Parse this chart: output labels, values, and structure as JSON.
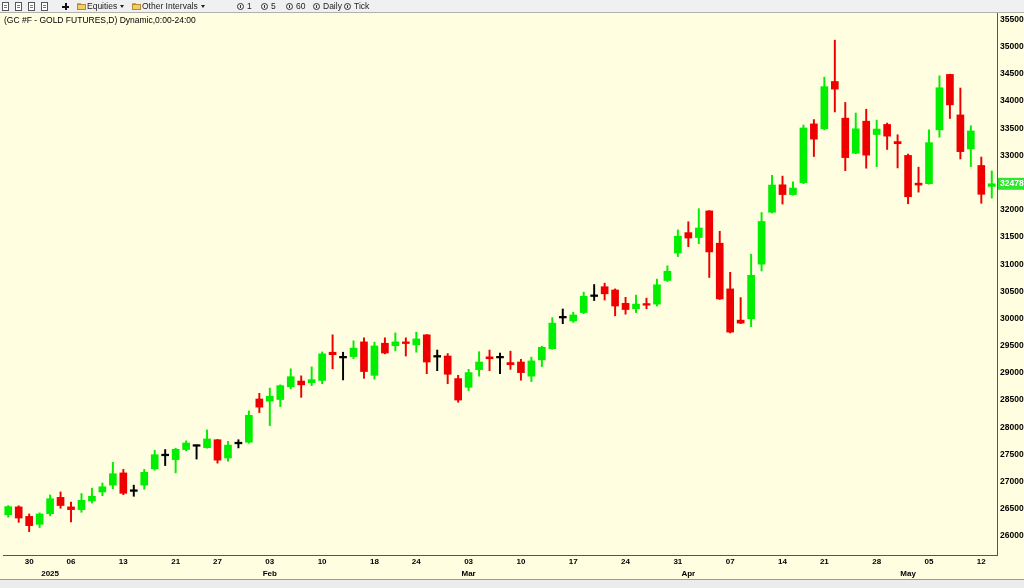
{
  "chart_data": {
    "type": "candlestick",
    "title": "(GC #F - GOLD FUTURES,D) Dynamic,0:00-24:00",
    "categories": [
      null,
      null,
      "30",
      null,
      "\n2025",
      null,
      "06",
      null,
      null,
      null,
      null,
      "13",
      null,
      null,
      null,
      null,
      "21",
      null,
      null,
      null,
      "27",
      null,
      null,
      null,
      null,
      "03\nFeb",
      null,
      null,
      null,
      null,
      "10",
      null,
      null,
      null,
      null,
      "18",
      null,
      null,
      null,
      "24",
      null,
      null,
      null,
      null,
      "03\nMar",
      null,
      null,
      null,
      null,
      "10",
      null,
      null,
      null,
      null,
      "17",
      null,
      null,
      null,
      null,
      "24",
      null,
      null,
      null,
      null,
      "31",
      "\nApr",
      null,
      null,
      null,
      "07",
      null,
      null,
      null,
      null,
      "14",
      null,
      null,
      null,
      "21",
      null,
      null,
      null,
      null,
      "28",
      null,
      null,
      "\nMay",
      null,
      "05",
      null,
      null,
      null,
      null,
      "12",
      null
    ],
    "ohlc": [
      [
        26390,
        26560,
        26345,
        26540
      ],
      [
        26535,
        26555,
        26250,
        26330
      ],
      [
        26360,
        26405,
        26080,
        26190
      ],
      [
        26215,
        26425,
        26155,
        26405
      ],
      [
        26410,
        26755,
        26370,
        26685
      ],
      [
        26710,
        26810,
        26510,
        26560
      ],
      [
        26535,
        26625,
        26260,
        26485
      ],
      [
        26485,
        26780,
        26435,
        26655
      ],
      [
        26645,
        26880,
        26605,
        26730
      ],
      [
        26810,
        26975,
        26740,
        26905
      ],
      [
        26935,
        27355,
        26870,
        27145
      ],
      [
        27160,
        27225,
        26760,
        26785
      ],
      [
        26835,
        26935,
        26730,
        26835
      ],
      [
        26935,
        27225,
        26860,
        27170
      ],
      [
        27235,
        27575,
        27210,
        27495
      ],
      [
        27490,
        27590,
        27295,
        27490
      ],
      [
        27405,
        27615,
        27160,
        27595
      ],
      [
        27590,
        27750,
        27565,
        27710
      ],
      [
        27665,
        27675,
        27415,
        27665
      ],
      [
        27625,
        27950,
        27615,
        27785
      ],
      [
        27770,
        27775,
        27340,
        27395
      ],
      [
        27435,
        27740,
        27375,
        27670
      ],
      [
        27710,
        27770,
        27620,
        27710
      ],
      [
        27725,
        28300,
        27705,
        28220
      ],
      [
        28520,
        28625,
        28270,
        28370
      ],
      [
        28480,
        28720,
        28030,
        28570
      ],
      [
        28510,
        28780,
        28380,
        28765
      ],
      [
        28745,
        29075,
        28710,
        28930
      ],
      [
        28850,
        28945,
        28550,
        28780
      ],
      [
        28820,
        29110,
        28765,
        28875
      ],
      [
        28860,
        29385,
        28800,
        29350
      ],
      [
        29380,
        29700,
        29075,
        29335
      ],
      [
        29290,
        29380,
        28870,
        29290
      ],
      [
        29300,
        29590,
        29260,
        29455
      ],
      [
        29570,
        29645,
        28900,
        29025
      ],
      [
        28955,
        29565,
        28885,
        29495
      ],
      [
        29545,
        29645,
        29350,
        29365
      ],
      [
        29500,
        29735,
        29405,
        29570
      ],
      [
        29570,
        29645,
        29310,
        29540
      ],
      [
        29515,
        29750,
        29380,
        29625
      ],
      [
        29700,
        29705,
        28985,
        29200
      ],
      [
        29305,
        29420,
        29040,
        29305
      ],
      [
        29310,
        29355,
        28800,
        28975
      ],
      [
        28895,
        28955,
        28460,
        28500
      ],
      [
        28735,
        29065,
        28675,
        29005
      ],
      [
        29060,
        29390,
        28940,
        29200
      ],
      [
        29295,
        29420,
        29040,
        29260
      ],
      [
        29290,
        29365,
        28985,
        29290
      ],
      [
        29190,
        29400,
        29065,
        29150
      ],
      [
        29200,
        29250,
        28865,
        29005
      ],
      [
        28940,
        29290,
        28840,
        29220
      ],
      [
        29240,
        29490,
        29115,
        29470
      ],
      [
        29445,
        30015,
        29435,
        29915
      ],
      [
        30025,
        30175,
        29905,
        30025
      ],
      [
        29955,
        30115,
        29930,
        30065
      ],
      [
        30110,
        30485,
        30090,
        30410
      ],
      [
        30420,
        30625,
        30330,
        30420
      ],
      [
        30585,
        30650,
        30340,
        30455
      ],
      [
        30525,
        30545,
        30050,
        30230
      ],
      [
        30280,
        30390,
        30080,
        30165
      ],
      [
        30180,
        30430,
        30110,
        30265
      ],
      [
        30275,
        30375,
        30180,
        30245
      ],
      [
        30265,
        30725,
        30230,
        30620
      ],
      [
        30700,
        30970,
        30680,
        30870
      ],
      [
        31205,
        31630,
        31140,
        31515
      ],
      [
        31580,
        31780,
        31320,
        31480
      ],
      [
        31490,
        32020,
        31375,
        31665
      ],
      [
        31980,
        31985,
        30755,
        31225
      ],
      [
        31385,
        31605,
        30350,
        30360
      ],
      [
        30545,
        30850,
        29735,
        29750
      ],
      [
        29970,
        30385,
        29905,
        29915
      ],
      [
        29995,
        31185,
        29850,
        30795
      ],
      [
        31000,
        31950,
        30875,
        31785
      ],
      [
        31955,
        32635,
        31940,
        32455
      ],
      [
        32460,
        32620,
        32105,
        32280
      ],
      [
        32280,
        32515,
        32270,
        32400
      ],
      [
        32500,
        33560,
        32480,
        33505
      ],
      [
        33580,
        33660,
        32980,
        33300
      ],
      [
        33490,
        34440,
        33470,
        34265
      ],
      [
        34360,
        35120,
        33800,
        34220
      ],
      [
        33685,
        33975,
        32720,
        32960
      ],
      [
        33040,
        33780,
        33030,
        33490
      ],
      [
        33630,
        33850,
        32765,
        33005
      ],
      [
        33385,
        33650,
        32795,
        33485
      ],
      [
        33570,
        33595,
        33110,
        33355
      ],
      [
        33255,
        33380,
        32770,
        33215
      ],
      [
        33000,
        33025,
        32110,
        32240
      ],
      [
        32490,
        32785,
        32325,
        32455
      ],
      [
        32480,
        33470,
        32470,
        33235
      ],
      [
        33470,
        34465,
        33335,
        34245
      ],
      [
        34490,
        34495,
        33680,
        33930
      ],
      [
        33745,
        34240,
        32935,
        33070
      ],
      [
        33120,
        33545,
        32795,
        33450
      ],
      [
        32815,
        32970,
        32120,
        32285
      ],
      [
        32430,
        32715,
        32215,
        32478
      ]
    ],
    "colors": [
      "#00ee00",
      "#ee0000",
      "#ee0000",
      "#00ee00",
      "#00ee00",
      "#ee0000",
      "#ee0000",
      "#00ee00",
      "#00ee00",
      "#00ee00",
      "#00ee00",
      "#ee0000",
      "#000000",
      "#00ee00",
      "#00ee00",
      "#000000",
      "#00ee00",
      "#00ee00",
      "#000000",
      "#00ee00",
      "#ee0000",
      "#00ee00",
      "#000000",
      "#00ee00",
      "#ee0000",
      "#00ee00",
      "#00ee00",
      "#00ee00",
      "#ee0000",
      "#00ee00",
      "#00ee00",
      "#ee0000",
      "#000000",
      "#00ee00",
      "#ee0000",
      "#00ee00",
      "#ee0000",
      "#00ee00",
      "#ee0000",
      "#00ee00",
      "#ee0000",
      "#000000",
      "#ee0000",
      "#ee0000",
      "#00ee00",
      "#00ee00",
      "#ee0000",
      "#000000",
      "#ee0000",
      "#ee0000",
      "#00ee00",
      "#00ee00",
      "#00ee00",
      "#000000",
      "#00ee00",
      "#00ee00",
      "#000000",
      "#ee0000",
      "#ee0000",
      "#ee0000",
      "#00ee00",
      "#ee0000",
      "#00ee00",
      "#00ee00",
      "#00ee00",
      "#ee0000",
      "#00ee00",
      "#ee0000",
      "#ee0000",
      "#ee0000",
      "#ee0000",
      "#00ee00",
      "#00ee00",
      "#00ee00",
      "#ee0000",
      "#00ee00",
      "#00ee00",
      "#ee0000",
      "#00ee00",
      "#ee0000",
      "#ee0000",
      "#00ee00",
      "#ee0000",
      "#00ee00",
      "#ee0000",
      "#ee0000",
      "#ee0000",
      "#ee0000",
      "#00ee00",
      "#00ee00",
      "#ee0000",
      "#ee0000",
      "#00ee00",
      "#ee0000",
      "#00ee00"
    ],
    "ylim": [
      25650,
      35620
    ],
    "yticks": [
      26000,
      26500,
      27000,
      27500,
      28000,
      28500,
      29000,
      29500,
      30000,
      30500,
      31000,
      31500,
      32000,
      33000,
      33500,
      34000,
      34500,
      35000,
      35500
    ],
    "grid": false,
    "annotations": [
      "Equities",
      "Other Intervals",
      "1",
      "5",
      "60",
      "Daily",
      "Tick",
      {
        "text": "32478",
        "y": 32478
      }
    ]
  }
}
